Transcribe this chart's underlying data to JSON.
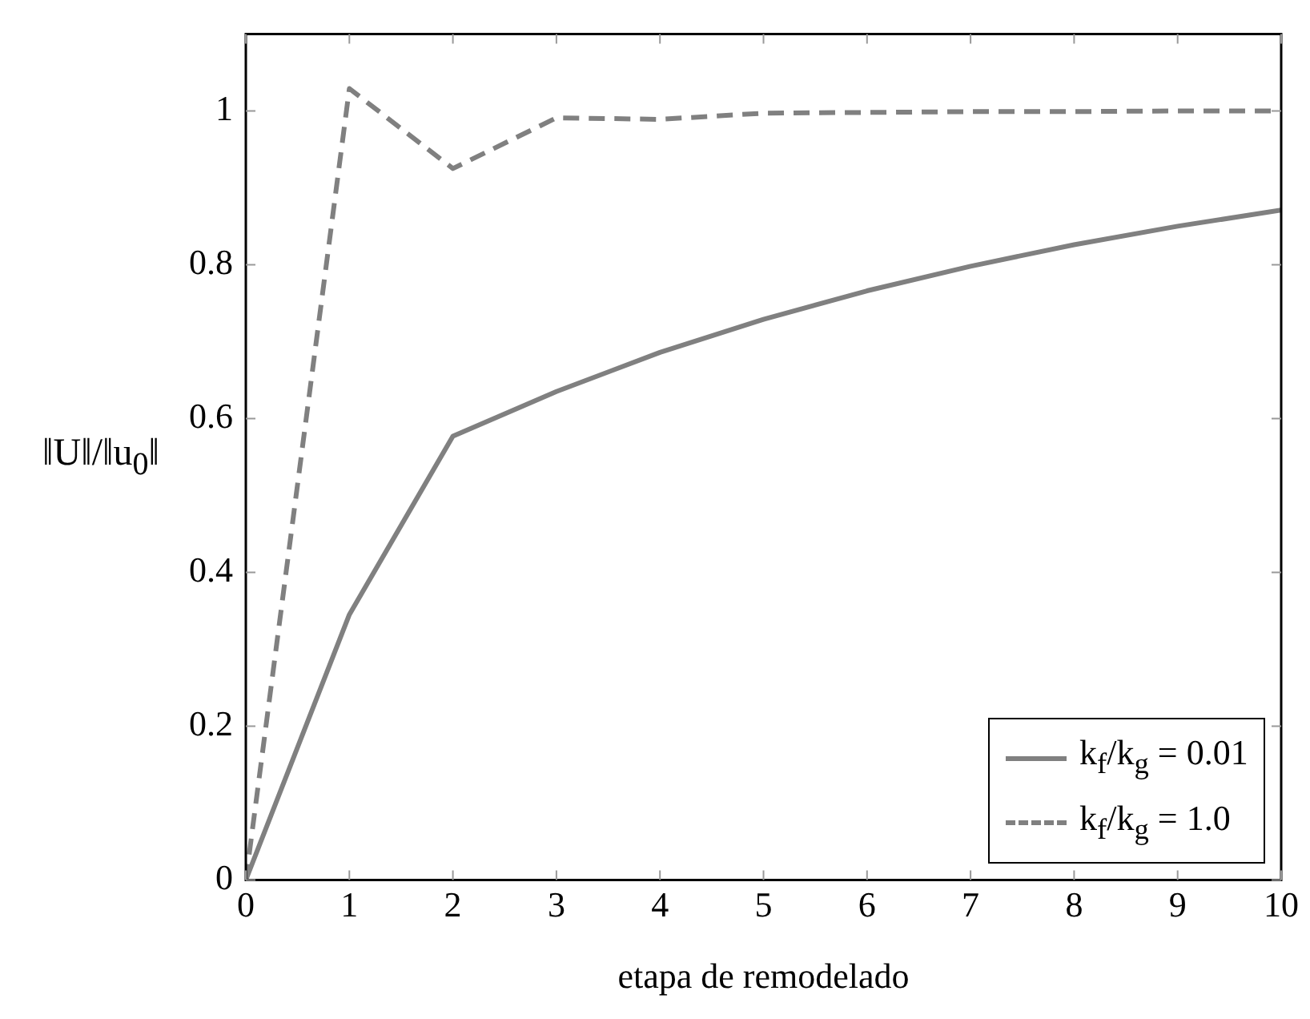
{
  "chart_data": {
    "type": "line",
    "xlabel": "etapa de remodelado",
    "ylabel": "‖U‖/‖u$_{0}$‖",
    "x": [
      0,
      1,
      2,
      3,
      4,
      5,
      6,
      7,
      8,
      9,
      10
    ],
    "xlim": [
      0,
      10
    ],
    "xticks": [
      0,
      1,
      2,
      3,
      4,
      5,
      6,
      7,
      8,
      9,
      10
    ],
    "ylim": [
      0,
      1.1
    ],
    "yticks": [
      0,
      0.2,
      0.4,
      0.6,
      0.8,
      1
    ],
    "grid": false,
    "legend": "bottom right",
    "marker": "none",
    "series": [
      {
        "name": "k$_{f}$/k$_{g}$ = 0.01",
        "color": "#808080",
        "line_style": "solid",
        "values": [
          0,
          0.345,
          0.577,
          0.635,
          0.686,
          0.729,
          0.766,
          0.798,
          0.826,
          0.85,
          0.871
        ]
      },
      {
        "name": "k$_{f}$/k$_{g}$ = 1.0",
        "color": "#808080",
        "line_style": "dashed",
        "values": [
          0,
          1.029,
          0.925,
          0.991,
          0.989,
          0.997,
          0.998,
          0.999,
          0.999,
          1,
          1
        ]
      }
    ]
  }
}
